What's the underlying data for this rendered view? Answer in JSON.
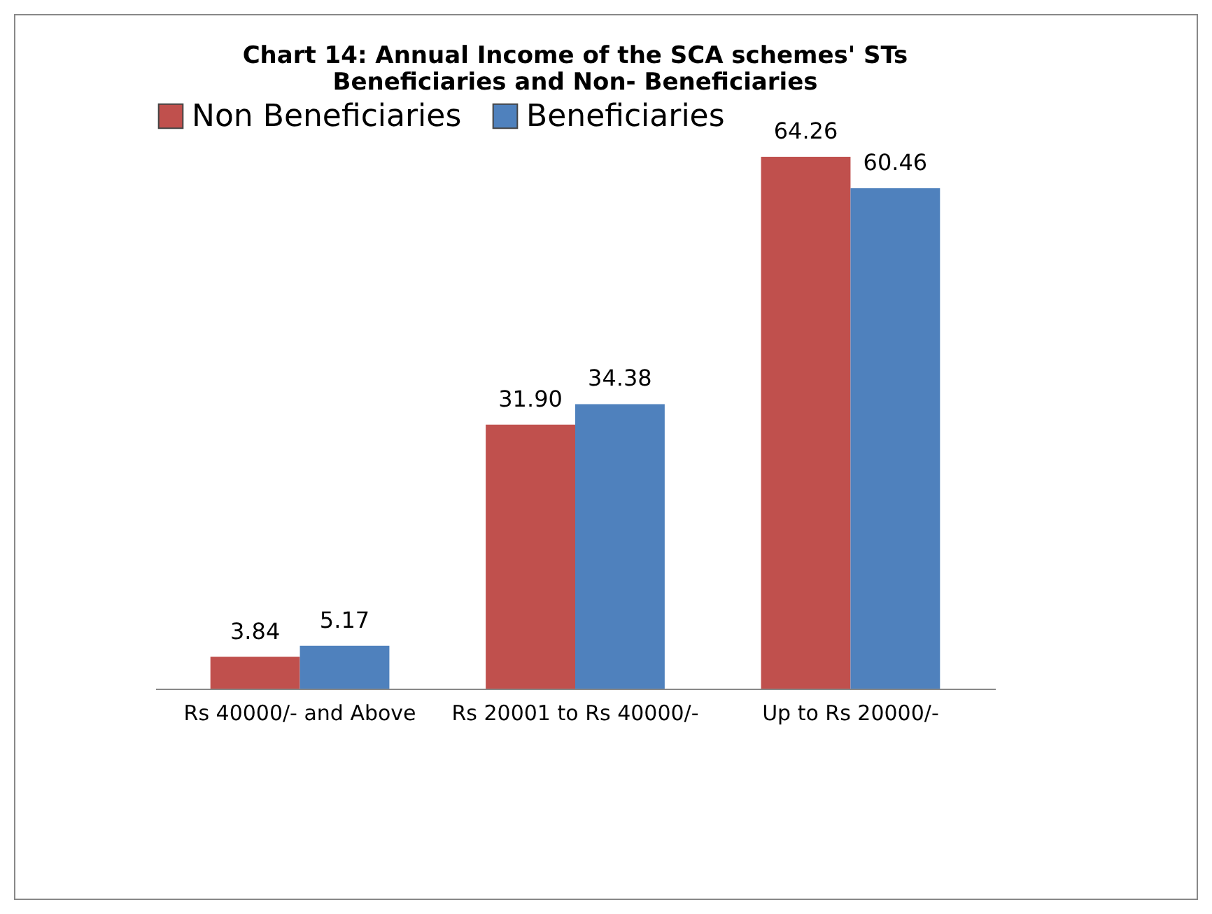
{
  "chart_data": {
    "type": "bar",
    "title": "Chart 14: Annual Income of the SCA schemes' STs\nBeneficiaries and Non- Beneficiaries",
    "categories": [
      "Rs 40000/- and Above",
      "Rs 20001 to Rs 40000/-",
      "Up to Rs 20000/-"
    ],
    "series": [
      {
        "name": "Non Beneficiaries",
        "color": "#c0504d",
        "values": [
          3.84,
          31.9,
          64.26
        ],
        "value_labels": [
          "3.84",
          "31.90",
          "64.26"
        ]
      },
      {
        "name": "Beneficiaries",
        "color": "#4f81bd",
        "values": [
          5.17,
          34.38,
          60.46
        ],
        "value_labels": [
          "5.17",
          "34.38",
          "60.46"
        ]
      }
    ],
    "legend": "top"
  }
}
